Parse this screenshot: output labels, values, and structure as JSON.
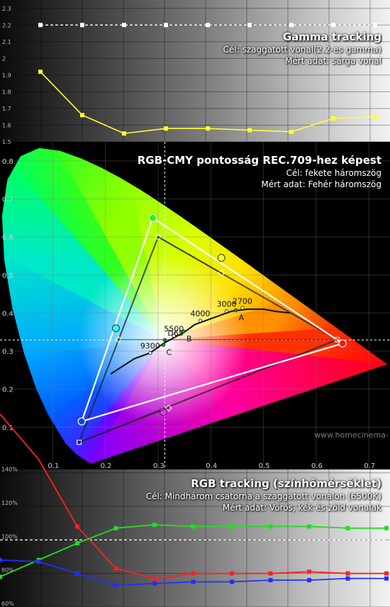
{
  "chart_data": [
    {
      "type": "line",
      "title": "Gamma tracking",
      "subtitle_target": "Cél: szaggatott vonal(2.2-es gamma)",
      "subtitle_measured": "Mért adat: sárga vonal",
      "y_ticks": [
        "1.5",
        "1.6",
        "1.7",
        "1.8",
        "1.9",
        "2",
        "2.1",
        "2.2",
        "2.3"
      ],
      "ylim": [
        1.5,
        2.35
      ],
      "x": [
        1,
        2,
        3,
        4,
        5,
        6,
        7,
        8,
        9
      ],
      "series": [
        {
          "role": "target",
          "color": "#ffffff",
          "style": "dashed",
          "values": [
            2.2,
            2.2,
            2.2,
            2.2,
            2.2,
            2.2,
            2.2,
            2.2,
            2.2
          ]
        },
        {
          "role": "measured",
          "color": "#ffff33",
          "values": [
            1.92,
            1.66,
            1.55,
            1.58,
            1.58,
            1.57,
            1.56,
            1.64,
            1.65
          ]
        }
      ]
    },
    {
      "type": "scatter",
      "title": "RGB-CMY pontosság REC.709-hez képest",
      "subtitle_target": "Cél: fekete háromszög",
      "subtitle_measured": "Mért adat: Fehér háromszög",
      "xlim": [
        0.0,
        0.74
      ],
      "ylim": [
        0.0,
        0.85
      ],
      "x_ticks": [
        "0.1",
        "0.2",
        "0.3",
        "0.4",
        "0.5",
        "0.6",
        "0.7"
      ],
      "y_ticks": [
        "0.1",
        "0.2",
        "0.3",
        "0.4",
        "0.5",
        "0.6",
        "0.7",
        "0.8"
      ],
      "target_gamut": [
        [
          0.64,
          0.33
        ],
        [
          0.3,
          0.6
        ],
        [
          0.15,
          0.06
        ]
      ],
      "measured_gamut": [
        [
          0.65,
          0.32
        ],
        [
          0.29,
          0.65
        ],
        [
          0.155,
          0.115
        ]
      ],
      "target_secondaries": [
        [
          0.32,
          0.15
        ],
        [
          0.225,
          0.33
        ],
        [
          0.42,
          0.505
        ]
      ],
      "measured_secondaries": [
        [
          0.31,
          0.14
        ],
        [
          0.22,
          0.36
        ],
        [
          0.42,
          0.545
        ]
      ],
      "white_target": [
        0.3127,
        0.329
      ],
      "planckian": [
        [
          0.21,
          0.24
        ],
        [
          0.255,
          0.28
        ],
        [
          0.285,
          0.295
        ],
        [
          0.3,
          0.31
        ],
        [
          0.31,
          0.32
        ],
        [
          0.33,
          0.335
        ],
        [
          0.35,
          0.35
        ],
        [
          0.37,
          0.37
        ],
        [
          0.39,
          0.38
        ],
        [
          0.41,
          0.39
        ],
        [
          0.44,
          0.405
        ],
        [
          0.47,
          0.41
        ],
        [
          0.5,
          0.41
        ],
        [
          0.52,
          0.405
        ],
        [
          0.55,
          0.4
        ]
      ],
      "cct_labels": [
        {
          "text": "2700",
          "x": 0.46,
          "y": 0.413
        },
        {
          "text": "3000",
          "x": 0.43,
          "y": 0.405
        },
        {
          "text": "4000",
          "x": 0.38,
          "y": 0.38
        },
        {
          "text": "5500",
          "x": 0.33,
          "y": 0.34
        },
        {
          "text": "9300",
          "x": 0.285,
          "y": 0.295
        },
        {
          "text": "D65",
          "x": 0.3127,
          "y": 0.329
        },
        {
          "text": "A",
          "x": 0.4476,
          "y": 0.4074
        },
        {
          "text": "B",
          "x": 0.3484,
          "y": 0.3516
        },
        {
          "text": "C",
          "x": 0.3101,
          "y": 0.3162
        }
      ],
      "locus": [
        [
          0.1741,
          0.005
        ],
        [
          0.1738,
          0.0049
        ],
        [
          0.1736,
          0.0049
        ],
        [
          0.1733,
          0.0048
        ],
        [
          0.1726,
          0.0048
        ],
        [
          0.1714,
          0.0051
        ],
        [
          0.1689,
          0.0069
        ],
        [
          0.1644,
          0.0109
        ],
        [
          0.1566,
          0.0177
        ],
        [
          0.144,
          0.0297
        ],
        [
          0.1241,
          0.0578
        ],
        [
          0.0913,
          0.1327
        ],
        [
          0.0687,
          0.2007
        ],
        [
          0.0454,
          0.295
        ],
        [
          0.0235,
          0.4127
        ],
        [
          0.0082,
          0.5384
        ],
        [
          0.0039,
          0.6548
        ],
        [
          0.0139,
          0.7502
        ],
        [
          0.0389,
          0.812
        ],
        [
          0.0743,
          0.8338
        ],
        [
          0.1142,
          0.8262
        ],
        [
          0.1547,
          0.8059
        ],
        [
          0.1929,
          0.7816
        ],
        [
          0.2296,
          0.7543
        ],
        [
          0.2658,
          0.7243
        ],
        [
          0.3016,
          0.6923
        ],
        [
          0.3373,
          0.6589
        ],
        [
          0.3731,
          0.6245
        ],
        [
          0.4087,
          0.5896
        ],
        [
          0.4441,
          0.5547
        ],
        [
          0.4788,
          0.5202
        ],
        [
          0.5125,
          0.4866
        ],
        [
          0.5448,
          0.4544
        ],
        [
          0.5752,
          0.4242
        ],
        [
          0.6029,
          0.3965
        ],
        [
          0.627,
          0.3725
        ],
        [
          0.6482,
          0.3514
        ],
        [
          0.6658,
          0.334
        ],
        [
          0.6801,
          0.3197
        ],
        [
          0.6915,
          0.3083
        ],
        [
          0.7006,
          0.2993
        ],
        [
          0.7079,
          0.292
        ],
        [
          0.714,
          0.2859
        ],
        [
          0.719,
          0.2809
        ],
        [
          0.723,
          0.277
        ],
        [
          0.726,
          0.274
        ],
        [
          0.7283,
          0.2717
        ],
        [
          0.73,
          0.27
        ],
        [
          0.7311,
          0.2689
        ],
        [
          0.732,
          0.268
        ],
        [
          0.7347,
          0.2653
        ]
      ],
      "watermark": "www.homecinema-"
    },
    {
      "type": "line",
      "title": "RGB tracking (színhőmérséklet)",
      "subtitle_target": "Cél: Mindhárom csatorna a szaggatott vonalon (6500K)",
      "subtitle_measured": "Mért adat: Vörös, kék és zöld vonalak",
      "y_ticks": [
        "60%",
        "80%",
        "100%",
        "120%",
        "140%"
      ],
      "ylim": [
        60,
        142
      ],
      "x": [
        0,
        1,
        2,
        3,
        4,
        5,
        6,
        7,
        8,
        9,
        10
      ],
      "series": [
        {
          "role": "target",
          "color": "#ffffff",
          "style": "dashed",
          "values": [
            100,
            100,
            100,
            100,
            100,
            100,
            100,
            100,
            100,
            100,
            100
          ]
        },
        {
          "name": "Vörös",
          "color": "#ff2020",
          "values": [
            175,
            148,
            108,
            83,
            77,
            80,
            80,
            80,
            81,
            80,
            80
          ]
        },
        {
          "name": "Zöld",
          "color": "#22dd22",
          "values": [
            78,
            88,
            98,
            107,
            109,
            108,
            108,
            108,
            108,
            107,
            107
          ]
        },
        {
          "name": "Kék",
          "color": "#2030ff",
          "values": [
            88,
            87,
            80,
            73,
            74,
            75,
            75,
            76,
            76,
            77,
            77
          ]
        }
      ]
    }
  ]
}
